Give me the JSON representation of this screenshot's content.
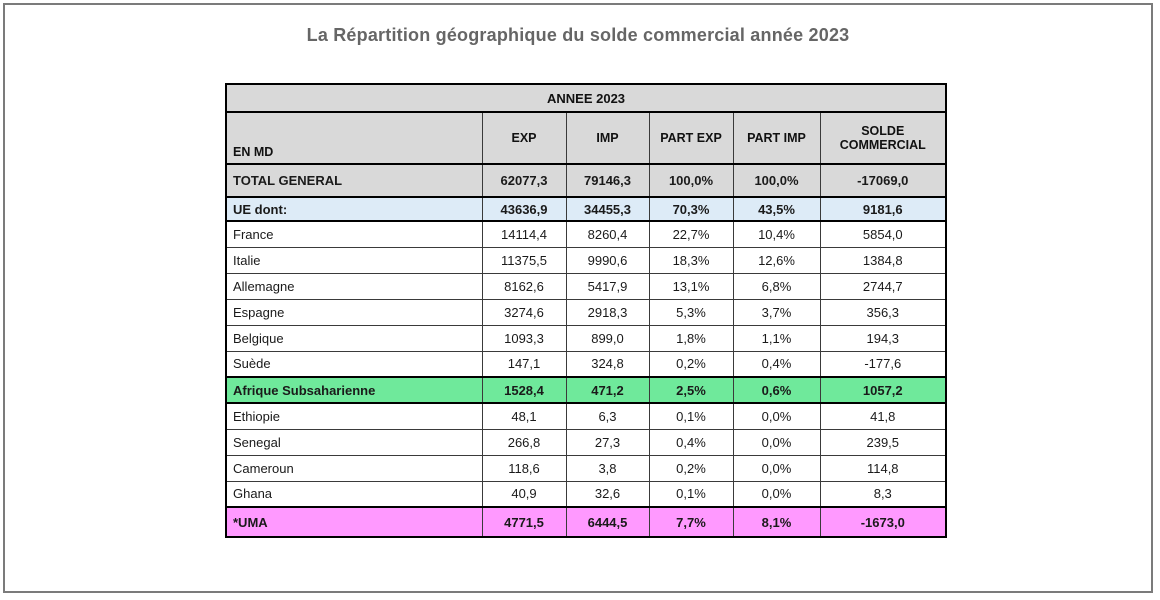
{
  "page": {
    "title": "La Répartition géographique du solde commercial année 2023"
  },
  "colors": {
    "header_fill": "#d9d9d9",
    "ue_row_fill": "#ddebf7",
    "africa_row_fill": "#6fe99b",
    "uma_row_fill": "#ff99ff",
    "frame_border": "#7b7b7b",
    "title_text": "#666666"
  },
  "table": {
    "year_header": "ANNEE 2023",
    "columns": {
      "label": "EN MD",
      "exp": "EXP",
      "imp": "IMP",
      "part_exp": "PART EXP",
      "part_imp": "PART IMP",
      "solde": "SOLDE COMMERCIAL"
    },
    "rows": [
      {
        "style": "total",
        "label": "TOTAL GENERAL",
        "exp": "62077,3",
        "imp": "79146,3",
        "part_exp": "100,0%",
        "part_imp": "100,0%",
        "solde": "-17069,0"
      },
      {
        "style": "ue",
        "label": "UE dont:",
        "exp": "43636,9",
        "imp": "34455,3",
        "part_exp": "70,3%",
        "part_imp": "43,5%",
        "solde": "9181,6"
      },
      {
        "style": "plain",
        "label": "France",
        "exp": "14114,4",
        "imp": "8260,4",
        "part_exp": "22,7%",
        "part_imp": "10,4%",
        "solde": "5854,0"
      },
      {
        "style": "plain",
        "label": "Italie",
        "exp": "11375,5",
        "imp": "9990,6",
        "part_exp": "18,3%",
        "part_imp": "12,6%",
        "solde": "1384,8"
      },
      {
        "style": "plain",
        "label": "Allemagne",
        "exp": "8162,6",
        "imp": "5417,9",
        "part_exp": "13,1%",
        "part_imp": "6,8%",
        "solde": "2744,7"
      },
      {
        "style": "plain",
        "label": "Espagne",
        "exp": "3274,6",
        "imp": "2918,3",
        "part_exp": "5,3%",
        "part_imp": "3,7%",
        "solde": "356,3"
      },
      {
        "style": "plain",
        "label": "Belgique",
        "exp": "1093,3",
        "imp": "899,0",
        "part_exp": "1,8%",
        "part_imp": "1,1%",
        "solde": "194,3"
      },
      {
        "style": "plain",
        "label": "Suède",
        "exp": "147,1",
        "imp": "324,8",
        "part_exp": "0,2%",
        "part_imp": "0,4%",
        "solde": "-177,6"
      },
      {
        "style": "green",
        "label": "Afrique Subsaharienne",
        "exp": "1528,4",
        "imp": "471,2",
        "part_exp": "2,5%",
        "part_imp": "0,6%",
        "solde": "1057,2"
      },
      {
        "style": "plain",
        "label": "Ethiopie",
        "exp": "48,1",
        "imp": "6,3",
        "part_exp": "0,1%",
        "part_imp": "0,0%",
        "solde": "41,8"
      },
      {
        "style": "plain",
        "label": "Senegal",
        "exp": "266,8",
        "imp": "27,3",
        "part_exp": "0,4%",
        "part_imp": "0,0%",
        "solde": "239,5"
      },
      {
        "style": "plain",
        "label": "Cameroun",
        "exp": "118,6",
        "imp": "3,8",
        "part_exp": "0,2%",
        "part_imp": "0,0%",
        "solde": "114,8"
      },
      {
        "style": "plain",
        "label": "Ghana",
        "exp": "40,9",
        "imp": "32,6",
        "part_exp": "0,1%",
        "part_imp": "0,0%",
        "solde": "8,3"
      },
      {
        "style": "pink",
        "label": "*UMA",
        "exp": "4771,5",
        "imp": "6444,5",
        "part_exp": "7,7%",
        "part_imp": "8,1%",
        "solde": "-1673,0"
      }
    ]
  }
}
